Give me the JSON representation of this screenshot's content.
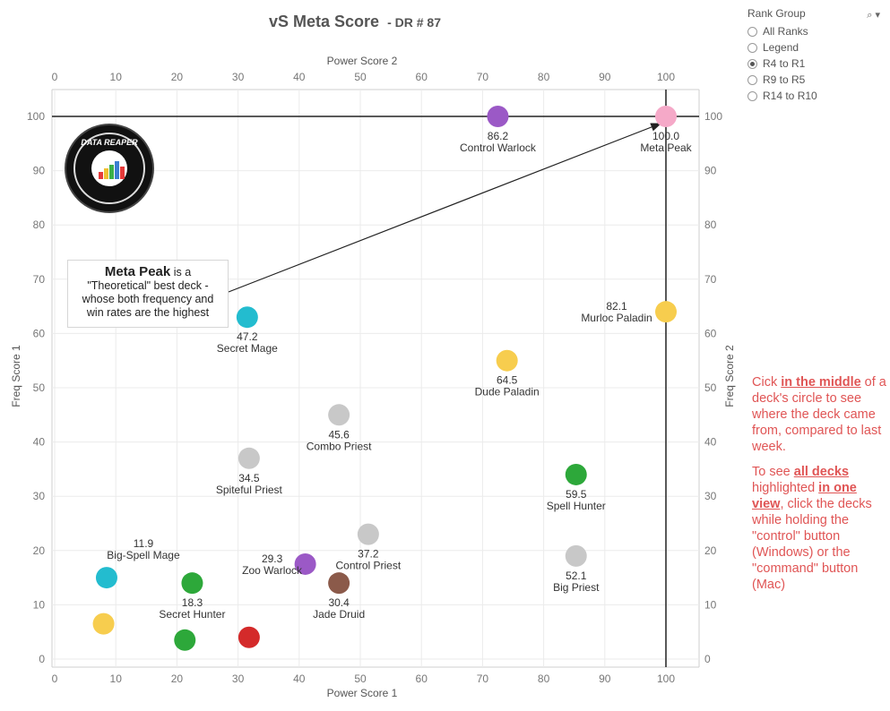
{
  "title": {
    "main": "vS Meta Score",
    "sub": "- DR # 87"
  },
  "filter": {
    "title": "Rank Group",
    "options": [
      "All Ranks",
      "Legend",
      "R4 to R1",
      "R9 to R5",
      "R14 to R10"
    ],
    "selected": "R4 to R1"
  },
  "callout": {
    "bold": "Meta Peak",
    "text1": " is a",
    "text2": "\"Theoretical\" best deck -",
    "text3": "whose both frequency and",
    "text4": "win rates are the highest"
  },
  "logo": {
    "text": "DATA REAPER REPORT",
    "colors": [
      "#e63a3a",
      "#f0c030",
      "#3ab04a",
      "#3a7fd0",
      "#e63a3a"
    ]
  },
  "instructions": {
    "p1_a": "Cick ",
    "p1_b": "in the middle",
    "p1_c": " of a deck's circle to see where the deck came from, compared to last week.",
    "p2_a": "To see ",
    "p2_b": "all decks ",
    "p2_c": "highlighted ",
    "p2_d": "in one view",
    "p2_e": ", click the decks while holding the \"control\" button (Windows) or the \"command\" button (Mac)"
  },
  "chart_data": {
    "type": "scatter",
    "xlabel": "Power Score 1",
    "xlabel_top": "Power Score 2",
    "ylabel": "Freq Score 1",
    "ylabel_right": "Freq Score 2",
    "xlim": [
      0,
      105
    ],
    "ylim": [
      0,
      105
    ],
    "xticks": [
      0,
      10,
      20,
      30,
      40,
      50,
      60,
      70,
      80,
      90,
      100
    ],
    "yticks": [
      0,
      10,
      20,
      30,
      40,
      50,
      60,
      70,
      80,
      90,
      100
    ],
    "grid": true,
    "reference_lines": {
      "x": 100,
      "y": 100
    },
    "points": [
      {
        "name": "Meta Peak",
        "value": "100.0",
        "x": 100,
        "y": 100,
        "color": "#f5a9c8"
      },
      {
        "name": "Control Warlock",
        "value": "86.2",
        "x": 72.5,
        "y": 100,
        "color": "#9b59c6"
      },
      {
        "name": "Murloc Paladin",
        "value": "82.1",
        "x": 100,
        "y": 64,
        "color": "#f7cd4e"
      },
      {
        "name": "Secret Mage",
        "value": "47.2",
        "x": 31.5,
        "y": 63,
        "color": "#23bccf"
      },
      {
        "name": "Dude Paladin",
        "value": "64.5",
        "x": 74,
        "y": 55,
        "color": "#f7cd4e"
      },
      {
        "name": "Combo Priest",
        "value": "45.6",
        "x": 46.5,
        "y": 45,
        "color": "#c8c8c8"
      },
      {
        "name": "Spiteful Priest",
        "value": "34.5",
        "x": 31.8,
        "y": 37,
        "color": "#c8c8c8"
      },
      {
        "name": "Spell Hunter",
        "value": "59.5",
        "x": 85.3,
        "y": 34,
        "color": "#2da83a"
      },
      {
        "name": "Control Priest",
        "value": "37.2",
        "x": 51.3,
        "y": 23,
        "color": "#c8c8c8"
      },
      {
        "name": "Big Priest",
        "value": "52.1",
        "x": 85.3,
        "y": 19,
        "color": "#c8c8c8"
      },
      {
        "name": "Zoo Warlock",
        "value": "29.3",
        "x": 41,
        "y": 17.5,
        "color": "#9b59c6"
      },
      {
        "name": "Jade Druid",
        "value": "30.4",
        "x": 46.5,
        "y": 14,
        "color": "#8b5a4a"
      },
      {
        "name": "Big-Spell Mage",
        "value": "11.9",
        "x": 8.5,
        "y": 15,
        "color": "#23bccf"
      },
      {
        "name": "Secret Hunter",
        "value": "18.3",
        "x": 22.5,
        "y": 14,
        "color": "#2da83a"
      },
      {
        "name": "",
        "value": "",
        "x": 8,
        "y": 6.5,
        "color": "#f7cd4e"
      },
      {
        "name": "",
        "value": "",
        "x": 21.3,
        "y": 3.5,
        "color": "#2da83a"
      },
      {
        "name": "",
        "value": "",
        "x": 31.8,
        "y": 4,
        "color": "#d42a2a"
      }
    ]
  }
}
